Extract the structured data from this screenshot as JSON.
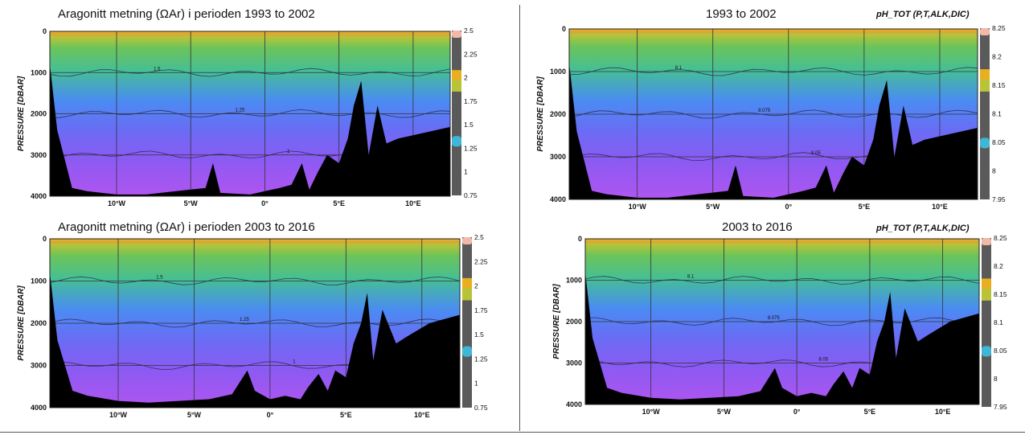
{
  "chart_data": [
    {
      "type": "heatmap",
      "title": "Aragonitt metning (ΩAr) i perioden 1993 to 2002",
      "parameter_label": "",
      "ylabel": "PRESSURE [DBAR]",
      "xlim": [
        -14.5,
        12.5
      ],
      "ylim": [
        0,
        4000
      ],
      "x_ticks": [
        "10°W",
        "5°W",
        "0°",
        "5°E",
        "10°E"
      ],
      "y_ticks": [
        "0",
        "1000",
        "2000",
        "3000",
        "4000"
      ],
      "colorbar": {
        "min": 0.75,
        "max": 2.5,
        "ticks": [
          "2.5",
          "2.25",
          "2",
          "1.75",
          "1.5",
          "1.25",
          "1",
          "0.75"
        ]
      },
      "contour_labels": [
        "1.5",
        "1.25",
        "1"
      ],
      "profile": [
        [
          -14.5,
          0.2
        ],
        [
          -14,
          0.6
        ],
        [
          -13,
          0.95
        ],
        [
          -12,
          0.97
        ],
        [
          -10,
          0.99
        ],
        [
          -8,
          0.99
        ],
        [
          -6,
          0.97
        ],
        [
          -5,
          0.96
        ],
        [
          -4,
          0.95
        ],
        [
          -3.5,
          0.8
        ],
        [
          -3,
          0.98
        ],
        [
          -1,
          0.99
        ],
        [
          0,
          0.97
        ],
        [
          1,
          0.95
        ],
        [
          1.8,
          0.93
        ],
        [
          2.5,
          0.8
        ],
        [
          3,
          0.96
        ],
        [
          3.6,
          0.85
        ],
        [
          4.2,
          0.75
        ],
        [
          5,
          0.8
        ],
        [
          5.6,
          0.65
        ],
        [
          6,
          0.45
        ],
        [
          6.5,
          0.3
        ],
        [
          7,
          0.75
        ],
        [
          7.6,
          0.45
        ],
        [
          8.2,
          0.68
        ],
        [
          9,
          0.65
        ],
        [
          10.5,
          0.62
        ],
        [
          12.5,
          0.58
        ]
      ]
    },
    {
      "type": "heatmap",
      "title": "1993 to 2002",
      "parameter_label": "pH_TOT (P,T,ALK,DIC)",
      "ylabel": "PRESSURE [DBAR]",
      "xlim": [
        -14.5,
        12.5
      ],
      "ylim": [
        0,
        4000
      ],
      "x_ticks": [
        "10°W",
        "5°W",
        "0°",
        "5°E",
        "10°E"
      ],
      "y_ticks": [
        "0",
        "1000",
        "2000",
        "3000",
        "4000"
      ],
      "colorbar": {
        "min": 7.95,
        "max": 8.25,
        "ticks": [
          "8.25",
          "8.2",
          "8.15",
          "8.1",
          "8.05",
          "8",
          "7.95"
        ]
      },
      "contour_labels": [
        "8.1",
        "8.075",
        "8.05",
        "8.025"
      ],
      "profile": [
        [
          -14.5,
          0.2
        ],
        [
          -14,
          0.6
        ],
        [
          -13,
          0.95
        ],
        [
          -12,
          0.97
        ],
        [
          -10,
          0.99
        ],
        [
          -8,
          0.99
        ],
        [
          -6,
          0.97
        ],
        [
          -5,
          0.96
        ],
        [
          -4,
          0.95
        ],
        [
          -3.5,
          0.8
        ],
        [
          -3,
          0.98
        ],
        [
          -1,
          0.99
        ],
        [
          0,
          0.97
        ],
        [
          1,
          0.95
        ],
        [
          1.8,
          0.93
        ],
        [
          2.5,
          0.8
        ],
        [
          3,
          0.96
        ],
        [
          3.6,
          0.85
        ],
        [
          4.2,
          0.75
        ],
        [
          5,
          0.8
        ],
        [
          5.6,
          0.65
        ],
        [
          6,
          0.45
        ],
        [
          6.5,
          0.3
        ],
        [
          7,
          0.75
        ],
        [
          7.6,
          0.45
        ],
        [
          8.2,
          0.68
        ],
        [
          9,
          0.65
        ],
        [
          10.5,
          0.62
        ],
        [
          12.5,
          0.58
        ]
      ]
    },
    {
      "type": "heatmap",
      "title": "Aragonitt metning (ΩAr) i perioden 2003 to 2016",
      "parameter_label": "",
      "ylabel": "PRESSURE [DBAR]",
      "xlim": [
        -14.5,
        12.5
      ],
      "ylim": [
        0,
        4000
      ],
      "x_ticks": [
        "10°W",
        "5°W",
        "0°",
        "5°E",
        "10°E"
      ],
      "y_ticks": [
        "0",
        "1000",
        "2000",
        "3000",
        "4000"
      ],
      "colorbar": {
        "min": 0.75,
        "max": 2.5,
        "ticks": [
          "2.5",
          "2.25",
          "2",
          "1.75",
          "1.5",
          "1.25",
          "1",
          "0.75"
        ]
      },
      "contour_labels": [
        "1.5",
        "1.25",
        "1"
      ],
      "profile": [
        [
          -14.5,
          0.2
        ],
        [
          -14,
          0.6
        ],
        [
          -13,
          0.9
        ],
        [
          -12,
          0.93
        ],
        [
          -10,
          0.96
        ],
        [
          -8,
          0.97
        ],
        [
          -6,
          0.96
        ],
        [
          -4,
          0.95
        ],
        [
          -2.5,
          0.92
        ],
        [
          -2,
          0.85
        ],
        [
          -1.5,
          0.78
        ],
        [
          -1,
          0.9
        ],
        [
          0,
          0.95
        ],
        [
          1,
          0.93
        ],
        [
          2,
          0.95
        ],
        [
          2.5,
          0.88
        ],
        [
          3.2,
          0.8
        ],
        [
          3.8,
          0.9
        ],
        [
          4.3,
          0.78
        ],
        [
          5,
          0.82
        ],
        [
          5.5,
          0.62
        ],
        [
          6,
          0.5
        ],
        [
          6.4,
          0.32
        ],
        [
          6.8,
          0.72
        ],
        [
          7.4,
          0.42
        ],
        [
          8.3,
          0.62
        ],
        [
          9,
          0.58
        ],
        [
          10.5,
          0.5
        ],
        [
          12.5,
          0.45
        ]
      ]
    },
    {
      "type": "heatmap",
      "title": "2003 to 2016",
      "parameter_label": "pH_TOT (P,T,ALK,DIC)",
      "ylabel": "PRESSURE [DBAR]",
      "xlim": [
        -14.5,
        12.5
      ],
      "ylim": [
        0,
        4000
      ],
      "x_ticks": [
        "10°W",
        "5°W",
        "0°",
        "5°E",
        "10°E"
      ],
      "y_ticks": [
        "0",
        "1000",
        "2000",
        "3000",
        "4000"
      ],
      "colorbar": {
        "min": 7.95,
        "max": 8.25,
        "ticks": [
          "8.25",
          "8.2",
          "8.15",
          "8.1",
          "8.05",
          "8",
          "7.95"
        ]
      },
      "contour_labels": [
        "8.1",
        "8.075",
        "8.05",
        "8.025"
      ],
      "profile": [
        [
          -14.5,
          0.2
        ],
        [
          -14,
          0.6
        ],
        [
          -13,
          0.9
        ],
        [
          -12,
          0.93
        ],
        [
          -10,
          0.96
        ],
        [
          -8,
          0.97
        ],
        [
          -6,
          0.96
        ],
        [
          -4,
          0.95
        ],
        [
          -2.5,
          0.92
        ],
        [
          -2,
          0.85
        ],
        [
          -1.5,
          0.78
        ],
        [
          -1,
          0.9
        ],
        [
          0,
          0.95
        ],
        [
          1,
          0.93
        ],
        [
          2,
          0.95
        ],
        [
          2.5,
          0.88
        ],
        [
          3.2,
          0.8
        ],
        [
          3.8,
          0.9
        ],
        [
          4.3,
          0.78
        ],
        [
          5,
          0.82
        ],
        [
          5.5,
          0.62
        ],
        [
          6,
          0.5
        ],
        [
          6.4,
          0.32
        ],
        [
          6.8,
          0.72
        ],
        [
          7.4,
          0.42
        ],
        [
          8.3,
          0.62
        ],
        [
          9,
          0.58
        ],
        [
          10.5,
          0.5
        ],
        [
          12.5,
          0.45
        ]
      ]
    }
  ],
  "colors": {
    "colormap": [
      "#b055f0",
      "#8c5af2",
      "#6a6cf5",
      "#4a8cf2",
      "#3eb6d6",
      "#45bf95",
      "#6cc45a",
      "#b8c338",
      "#e8b020",
      "#ee8a4a",
      "#f2b9a8"
    ],
    "seabed": "#000000",
    "colorbar_bg": "#5a5a5a",
    "contour": "#1a1a3a"
  }
}
